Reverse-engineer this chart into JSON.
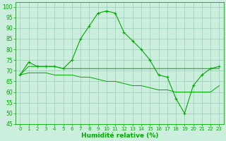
{
  "xlabel": "Humidité relative (%)",
  "bg_color": "#cceedd",
  "grid_color": "#99ccbb",
  "line_color": "#00aa00",
  "xlim": [
    -0.5,
    23.5
  ],
  "ylim": [
    45,
    102
  ],
  "yticks": [
    45,
    50,
    55,
    60,
    65,
    70,
    75,
    80,
    85,
    90,
    95,
    100
  ],
  "xticks": [
    0,
    1,
    2,
    3,
    4,
    5,
    6,
    7,
    8,
    9,
    10,
    11,
    12,
    13,
    14,
    15,
    16,
    17,
    18,
    19,
    20,
    21,
    22,
    23
  ],
  "line1": [
    68,
    74,
    72,
    72,
    72,
    71,
    75,
    85,
    91,
    97,
    98,
    97,
    88,
    84,
    80,
    75,
    68,
    67,
    57,
    50,
    63,
    68,
    71,
    72
  ],
  "line2": [
    68,
    72,
    72,
    72,
    72,
    71,
    71,
    71,
    71,
    71,
    71,
    71,
    71,
    71,
    71,
    71,
    71,
    71,
    71,
    71,
    71,
    71,
    71,
    71
  ],
  "line3": [
    68,
    69,
    69,
    69,
    68,
    68,
    68,
    67,
    67,
    66,
    65,
    65,
    64,
    63,
    63,
    62,
    61,
    61,
    60,
    60,
    60,
    60,
    60,
    63
  ]
}
